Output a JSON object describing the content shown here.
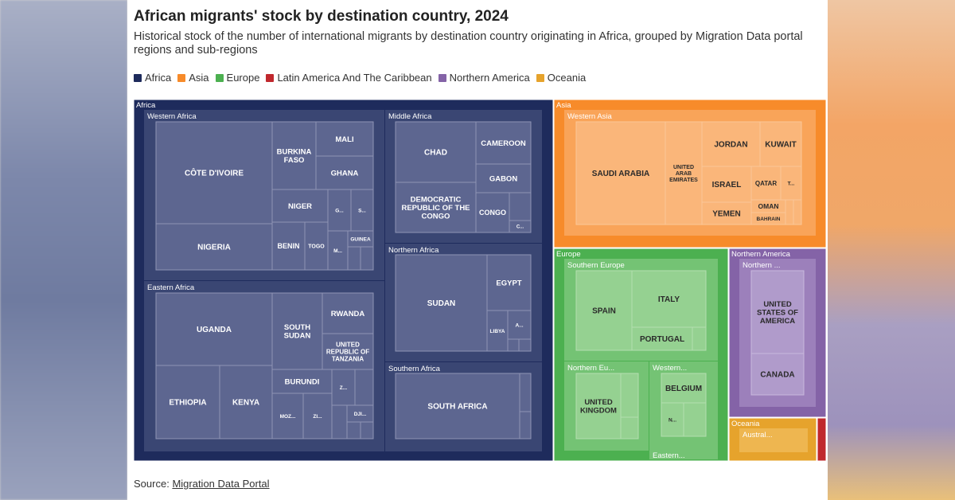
{
  "title": "African migrants' stock by destination country, 2024",
  "subtitle": "Historical stock of the number of international migrants by destination country originating in Africa, grouped by Migration Data portal regions and sub-regions",
  "source_label": "Source:",
  "source_link": "Migration Data Portal",
  "legend": [
    {
      "label": "Africa",
      "color": "#1e2b5c"
    },
    {
      "label": "Asia",
      "color": "#f78b2a"
    },
    {
      "label": "Europe",
      "color": "#4cb050"
    },
    {
      "label": "Latin America And The Caribbean",
      "color": "#c0282d"
    },
    {
      "label": "Northern America",
      "color": "#8463a7"
    },
    {
      "label": "Oceania",
      "color": "#e6a32c"
    }
  ],
  "chart_data": {
    "type": "treemap",
    "title": "African migrants' stock by destination country, 2024",
    "regions": [
      {
        "name": "Africa",
        "subregions": [
          {
            "name": "Western Africa",
            "countries": [
              "CÔTE D'IVOIRE",
              "NIGERIA",
              "BURKINA FASO",
              "MALI",
              "GHANA",
              "NIGER",
              "BENIN",
              "TOGO",
              "GUINEA",
              "G...",
              "S...",
              "M..."
            ]
          },
          {
            "name": "Eastern Africa",
            "countries": [
              "UGANDA",
              "ETHIOPIA",
              "KENYA",
              "SOUTH SUDAN",
              "RWANDA",
              "UNITED REPUBLIC OF TANZANIA",
              "BURUNDI",
              "MOZ...",
              "ZI...",
              "Z...",
              "DJI..."
            ]
          },
          {
            "name": "Middle Africa",
            "countries": [
              "CHAD",
              "DEMOCRATIC REPUBLIC OF THE CONGO",
              "CAMEROON",
              "GABON",
              "CONGO",
              "C..."
            ]
          },
          {
            "name": "Northern Africa",
            "countries": [
              "SUDAN",
              "EGYPT",
              "LIBYA",
              "A..."
            ]
          },
          {
            "name": "Southern Africa",
            "countries": [
              "SOUTH AFRICA"
            ]
          }
        ]
      },
      {
        "name": "Asia",
        "subregions": [
          {
            "name": "Western Asia",
            "countries": [
              "SAUDI ARABIA",
              "UNITED ARAB EMIRATES",
              "JORDAN",
              "KUWAIT",
              "ISRAEL",
              "QATAR",
              "T...",
              "YEMEN",
              "OMAN",
              "BAHRAIN"
            ]
          }
        ]
      },
      {
        "name": "Europe",
        "subregions": [
          {
            "name": "Southern Europe",
            "countries": [
              "SPAIN",
              "ITALY",
              "PORTUGAL"
            ]
          },
          {
            "name": "Northern Eu...",
            "countries": [
              "UNITED KINGDOM"
            ]
          },
          {
            "name": "Western...",
            "countries": [
              "BELGIUM",
              "N..."
            ]
          },
          {
            "name": "Eastern...",
            "countries": []
          }
        ]
      },
      {
        "name": "Northern America",
        "subregions": [
          {
            "name": "Northern ...",
            "countries": [
              "UNITED STATES OF AMERICA",
              "CANADA"
            ]
          }
        ]
      },
      {
        "name": "Oceania",
        "subregions": [
          {
            "name": "Austral...",
            "countries": []
          }
        ]
      },
      {
        "name": "Latin America And The Caribbean",
        "subregions": []
      }
    ]
  }
}
